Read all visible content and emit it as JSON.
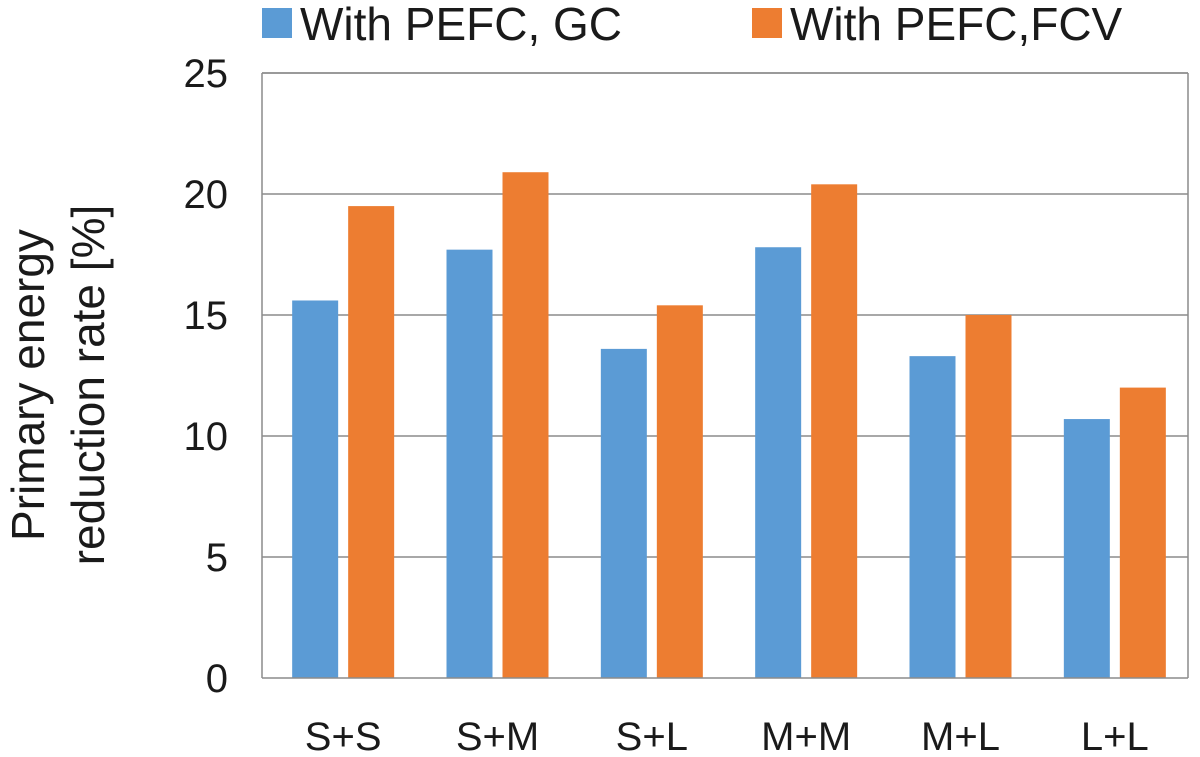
{
  "chart_data": {
    "type": "bar",
    "categories": [
      "S+S",
      "S+M",
      "S+L",
      "M+M",
      "M+L",
      "L+L"
    ],
    "series": [
      {
        "name": "With PEFC, GC",
        "color": "#5b9bd5",
        "values": [
          15.6,
          17.7,
          13.6,
          17.8,
          13.3,
          10.7
        ]
      },
      {
        "name": "With PEFC,FCV",
        "color": "#ed7d31",
        "values": [
          19.5,
          20.9,
          15.4,
          20.4,
          15.0,
          12.0
        ]
      }
    ],
    "title": "",
    "xlabel": "",
    "ylabel_lines": [
      "Primary energy",
      "reduction rate [%]"
    ],
    "ylim": [
      0,
      25
    ],
    "yticks": [
      0,
      5,
      10,
      15,
      20,
      25
    ],
    "grid": true,
    "legend_position": "top"
  }
}
